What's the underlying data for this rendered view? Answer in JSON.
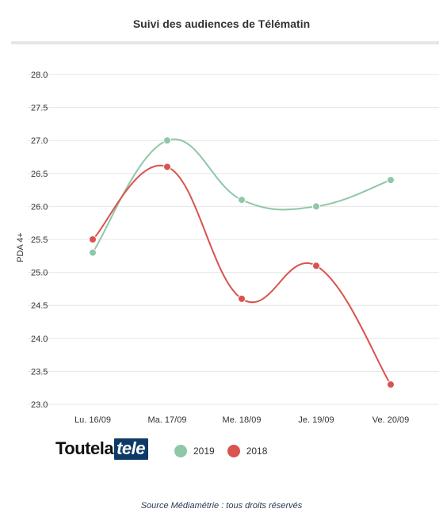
{
  "header": {
    "title": "Suivi des audiences de Télématin"
  },
  "logo": {
    "text_dark": "Toutela",
    "text_boxed": "tele"
  },
  "footer": {
    "source": "Source Médiamétrie : tous droits réservés"
  },
  "chart_data": {
    "type": "line",
    "title": "Suivi des audiences de Télématin",
    "xlabel": "",
    "ylabel": "PDA 4+",
    "categories": [
      "Lu. 16/09",
      "Ma. 17/09",
      "Me. 18/09",
      "Je. 19/09",
      "Ve. 20/09"
    ],
    "ylim": [
      23.0,
      28.0
    ],
    "yticks": [
      "28.0",
      "27.5",
      "27.0",
      "26.5",
      "26.0",
      "25.5",
      "25.0",
      "24.5",
      "24.0",
      "23.5",
      "23.0"
    ],
    "grid": true,
    "legend_position": "bottom",
    "series": [
      {
        "name": "2019",
        "color": "#8fc7a8",
        "values": [
          25.3,
          27.0,
          26.1,
          26.0,
          26.4
        ]
      },
      {
        "name": "2018",
        "color": "#d9534f",
        "values": [
          25.5,
          26.6,
          24.6,
          25.1,
          23.3
        ]
      }
    ]
  }
}
